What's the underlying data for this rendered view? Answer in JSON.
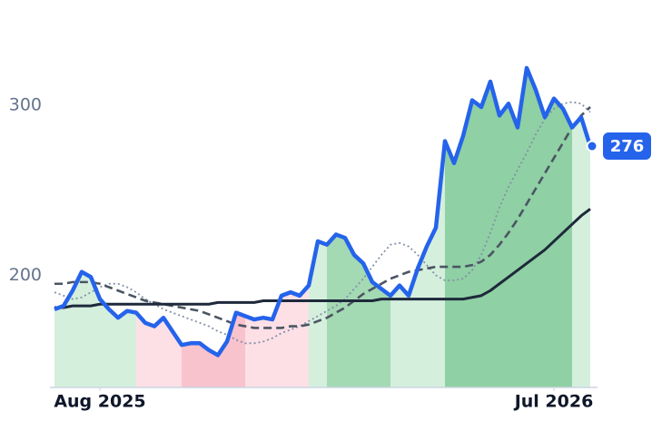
{
  "chart_data": {
    "type": "line",
    "categories": [
      null,
      null,
      null,
      null,
      null,
      "Aug 2025",
      null,
      null,
      null,
      null,
      null,
      null,
      null,
      null,
      null,
      null,
      null,
      null,
      null,
      null,
      null,
      null,
      null,
      null,
      null,
      null,
      null,
      null,
      null,
      null,
      null,
      null,
      null,
      null,
      null,
      null,
      null,
      null,
      null,
      null,
      null,
      null,
      null,
      null,
      null,
      null,
      null,
      null,
      null,
      null,
      null,
      null,
      null,
      null,
      null,
      "Jul 2026",
      null,
      null,
      null,
      null
    ],
    "series": [
      {
        "color": "#2563eb",
        "values": [
          180,
          182,
          191,
          202,
          199,
          186,
          180,
          175,
          179,
          178,
          172,
          170,
          175,
          167,
          159,
          160,
          160,
          156,
          153,
          161,
          178,
          176,
          174,
          175,
          174,
          188,
          190,
          188,
          194,
          220,
          218,
          224,
          222,
          212,
          207,
          196,
          192,
          188,
          194,
          188,
          204,
          217,
          228,
          279,
          266,
          282,
          303,
          299,
          314,
          294,
          301,
          287,
          322,
          309,
          293,
          304,
          298,
          287,
          293,
          276
        ]
      },
      {
        "color": "#8391a7",
        "values": [
          190,
          188,
          186,
          187,
          190,
          193,
          195,
          195,
          193,
          190,
          186,
          183,
          180,
          178,
          176,
          174,
          172,
          170,
          167,
          165,
          162,
          160,
          160,
          161,
          163,
          166,
          168,
          170,
          173,
          176,
          179,
          182,
          186,
          192,
          198,
          205,
          212,
          218,
          219,
          217,
          212,
          206,
          200,
          197,
          197,
          198,
          203,
          212,
          225,
          240,
          252,
          262,
          272,
          283,
          292,
          298,
          301,
          302,
          301,
          296
        ]
      },
      {
        "color": "#4b5563",
        "values": [
          195,
          195,
          196,
          196,
          196,
          195,
          193,
          191,
          189,
          187,
          185,
          184,
          183,
          182,
          181,
          180,
          179,
          177,
          175,
          173,
          171,
          170,
          169,
          169,
          169,
          169,
          170,
          170,
          171,
          173,
          175,
          178,
          181,
          185,
          189,
          192,
          195,
          198,
          200,
          202,
          203,
          204,
          205,
          205,
          205,
          205,
          206,
          208,
          212,
          218,
          225,
          233,
          242,
          251,
          260,
          269,
          278,
          287,
          294,
          299
        ]
      },
      {
        "color": "#1e293b",
        "values": [
          181,
          181,
          182,
          182,
          182,
          183,
          183,
          183,
          183,
          183,
          183,
          183,
          183,
          183,
          183,
          183,
          183,
          183,
          184,
          184,
          184,
          184,
          184,
          185,
          185,
          185,
          185,
          185,
          185,
          185,
          185,
          185,
          185,
          185,
          185,
          185,
          186,
          186,
          186,
          186,
          186,
          186,
          186,
          186,
          186,
          186,
          187,
          188,
          191,
          195,
          199,
          203,
          207,
          211,
          215,
          220,
          225,
          230,
          235,
          239
        ]
      }
    ],
    "regimes": [
      {
        "start": 0,
        "end": 9,
        "color": "#d5efdd"
      },
      {
        "start": 9,
        "end": 14,
        "color": "#fde0e6"
      },
      {
        "start": 14,
        "end": 21,
        "color": "#f8c3cd"
      },
      {
        "start": 21,
        "end": 28,
        "color": "#fde0e6"
      },
      {
        "start": 28,
        "end": 30,
        "color": "#d5efdd"
      },
      {
        "start": 30,
        "end": 37,
        "color": "#a3d9b3"
      },
      {
        "start": 37,
        "end": 43,
        "color": "#d5efdd"
      },
      {
        "start": 43,
        "end": 57,
        "color": "#8fd0a4"
      },
      {
        "start": 57,
        "end": 59,
        "color": "#d5efdd"
      }
    ],
    "ylim": [
      134,
      362
    ],
    "yticks": [
      200,
      300
    ]
  }
}
